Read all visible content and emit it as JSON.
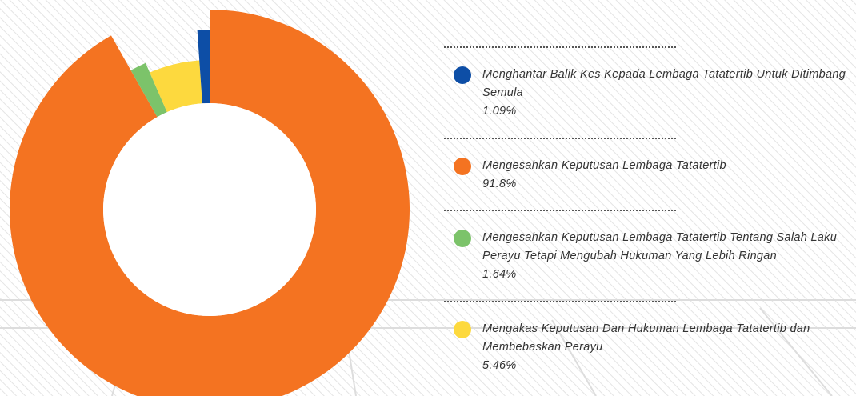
{
  "chart_data": {
    "type": "donut",
    "categories": [
      "Menghantar Balik Kes Kepada Lembaga Tatatertib Untuk Ditimbang Semula",
      "Mengesahkan Keputusan Lembaga Tatatertib",
      "Mengesahkan Keputusan Lembaga Tatatertib Tentang Salah Laku Perayu Tetapi Mengubah Hukuman Yang Lebih Ringan",
      "Mengakas Keputusan Dan Hukuman Lembaga Tatatertib dan Membebaskan Perayu"
    ],
    "values": [
      1.09,
      91.8,
      1.64,
      5.46
    ],
    "value_labels": [
      "1.09%",
      "91.8%",
      "1.64%",
      "5.46%"
    ],
    "colors": [
      "#0d4ea6",
      "#f47321",
      "#7cc36a",
      "#fdd93e"
    ]
  }
}
